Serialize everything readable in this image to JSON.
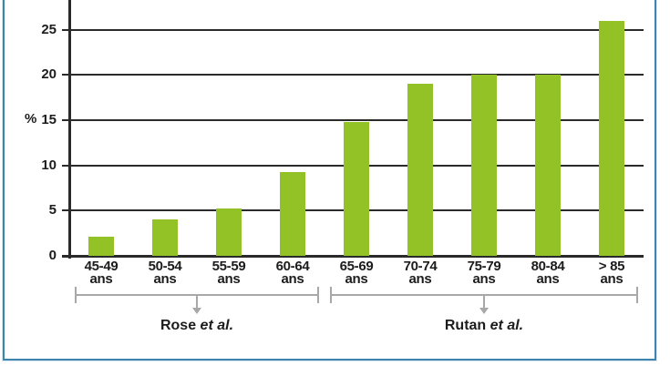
{
  "chart_data": {
    "type": "bar",
    "title": "",
    "ylabel": "%",
    "xlabel": "",
    "categories": [
      "45-49",
      "50-54",
      "55-59",
      "60-64",
      "65-69",
      "70-74",
      "75-79",
      "80-84",
      "> 85"
    ],
    "category_unit": "ans",
    "values": [
      2.1,
      4.0,
      5.2,
      9.3,
      14.8,
      19.0,
      20.0,
      20.0,
      26.0
    ],
    "yticks": [
      0,
      5,
      10,
      15,
      20,
      25
    ],
    "ylim": [
      0,
      28
    ],
    "grid": true,
    "legend_position": "none",
    "bar_color": "#92c226",
    "axis_color": "#2a2a2a",
    "bracket_color": "#a8a8a8",
    "groups": [
      {
        "label_name": "Rose",
        "label_suffix": "et al.",
        "start_index": 0,
        "end_index": 3
      },
      {
        "label_name": "Rutan",
        "label_suffix": "et al.",
        "start_index": 4,
        "end_index": 8
      }
    ]
  },
  "frame": {
    "border_color": "#3d84ae"
  }
}
